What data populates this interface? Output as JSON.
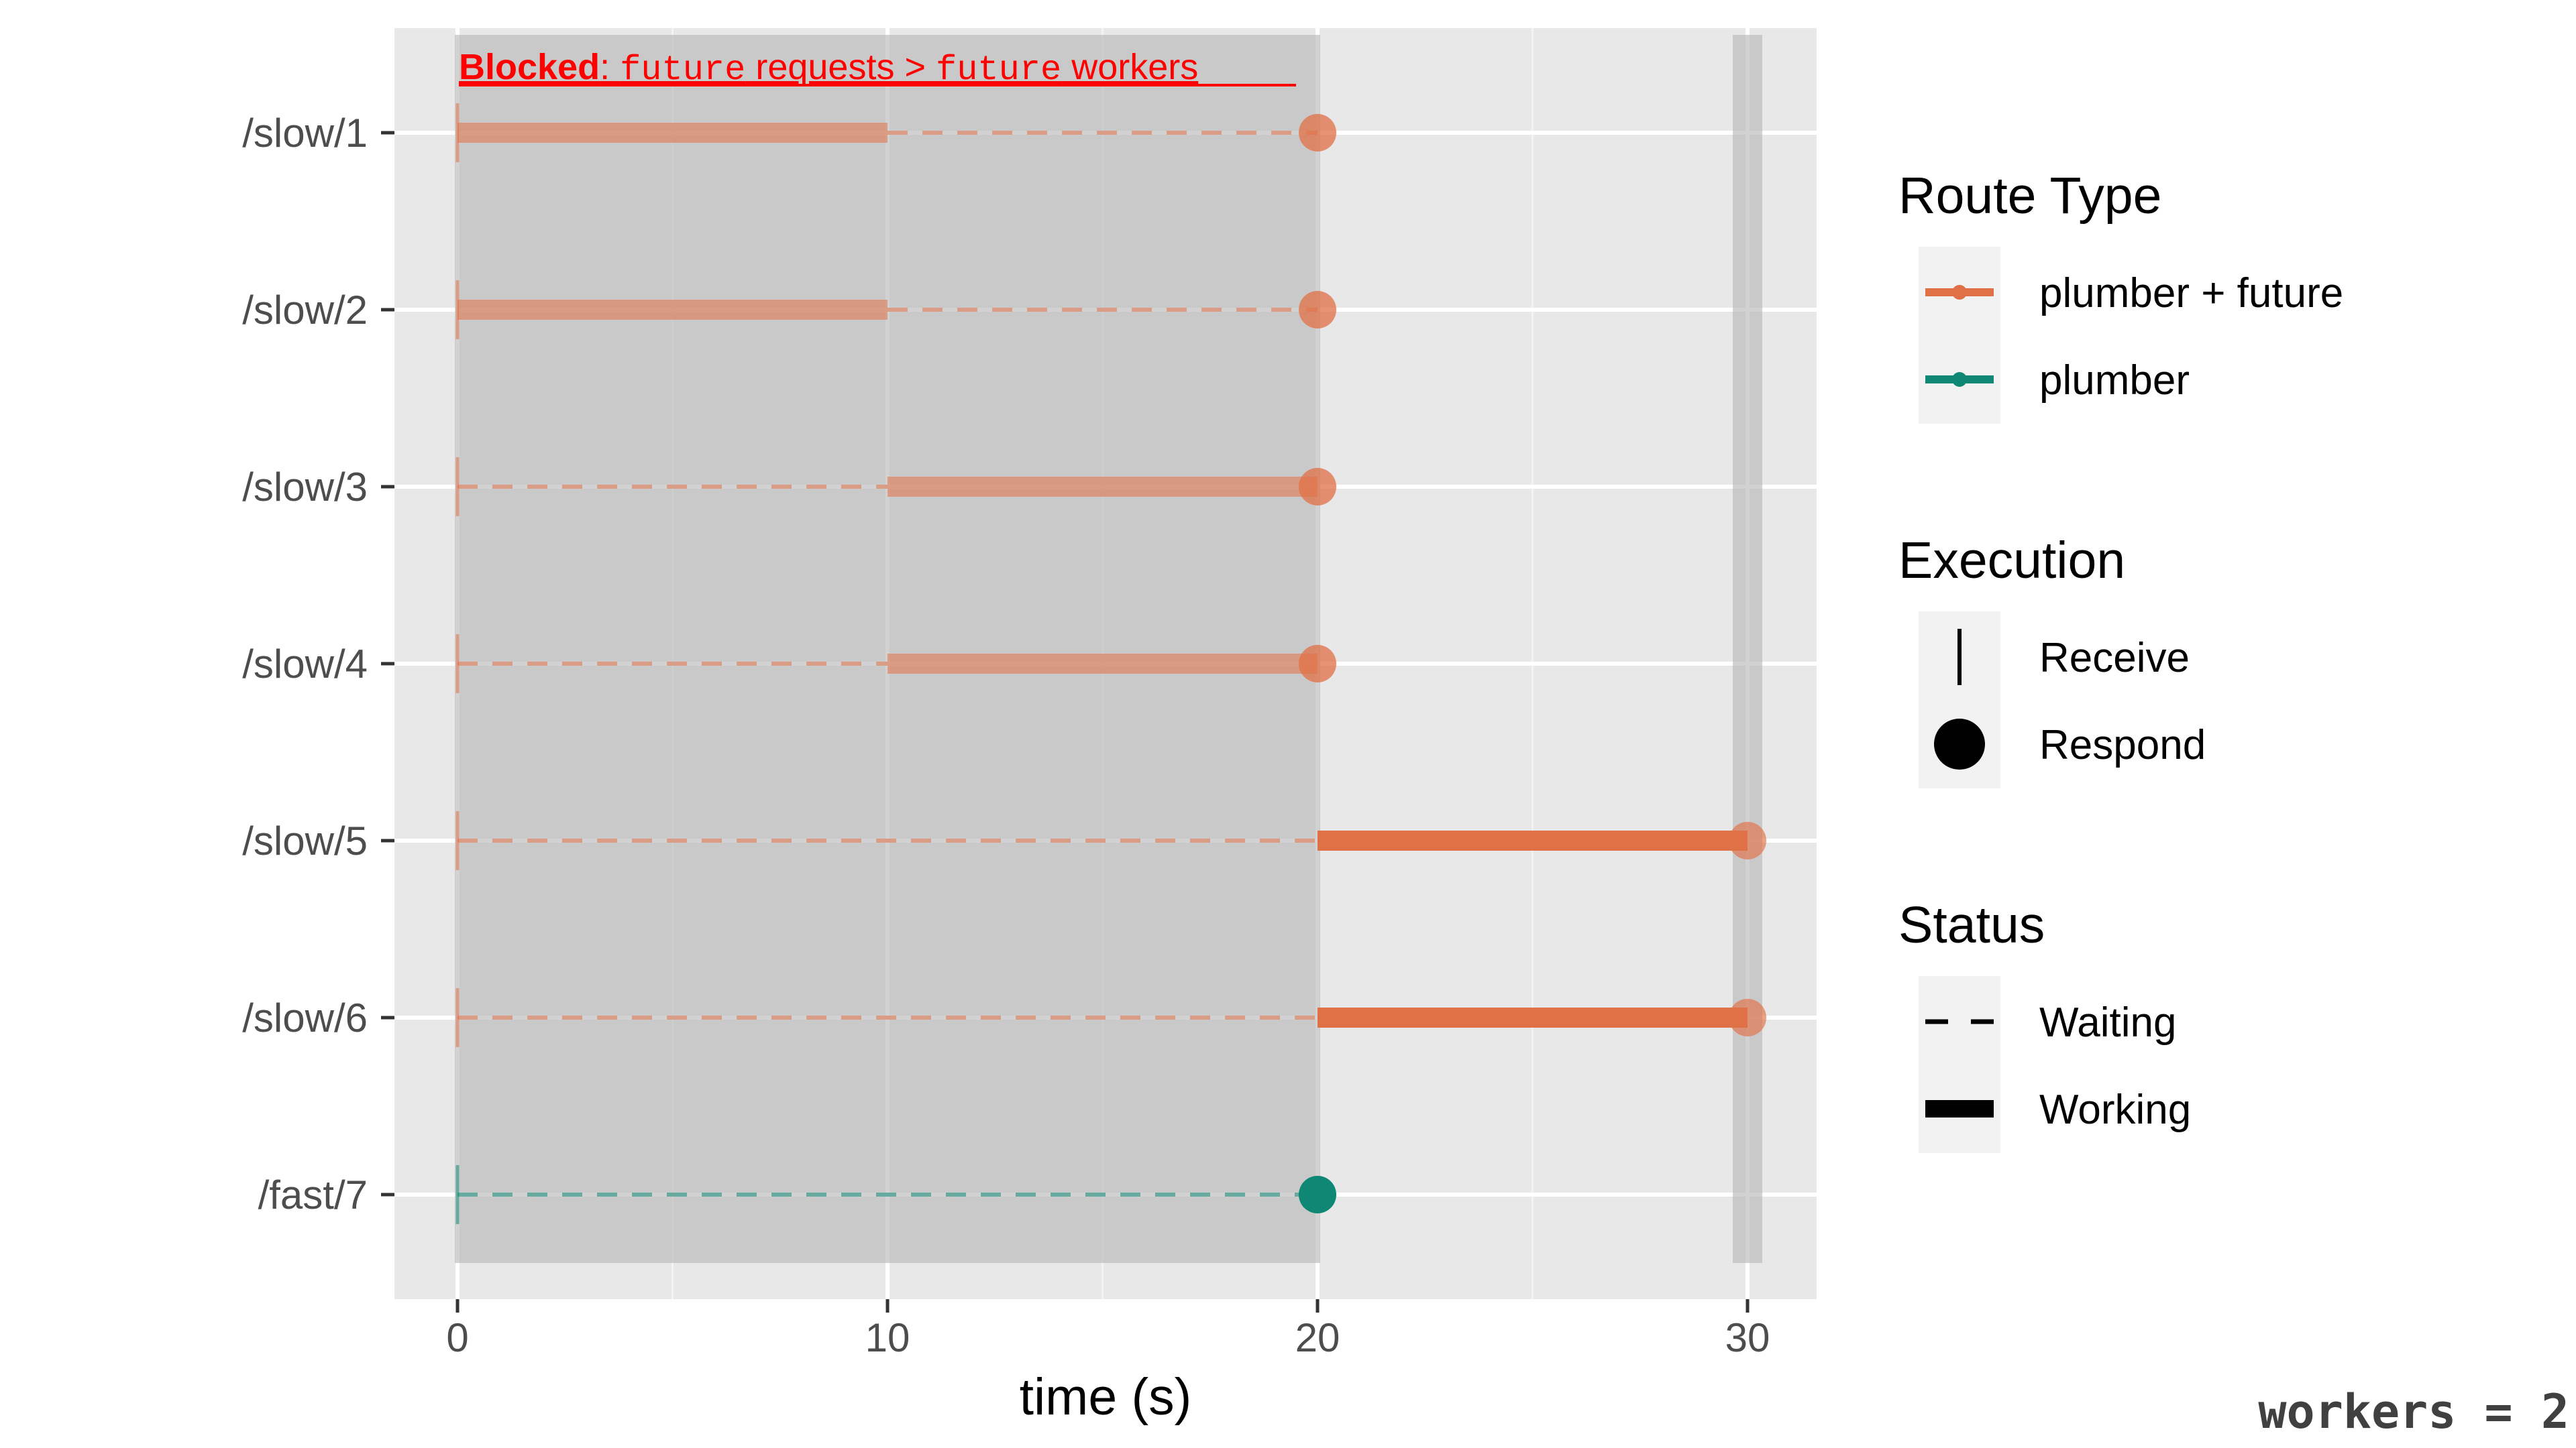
{
  "chart_data": {
    "type": "timeline",
    "xlabel": "time (s)",
    "xlim": [
      -1.5,
      31.5
    ],
    "x_ticks": [
      0,
      10,
      20,
      30
    ],
    "routes": [
      "/slow/1",
      "/slow/2",
      "/slow/3",
      "/slow/4",
      "/slow/5",
      "/slow/6",
      "/fast/7"
    ],
    "segments": [
      {
        "route": "/slow/1",
        "status": "Working",
        "start": 0,
        "end": 10,
        "type": "plumber + future",
        "blocked": true
      },
      {
        "route": "/slow/1",
        "status": "Waiting",
        "start": 10,
        "end": 20,
        "type": "plumber + future",
        "blocked": true
      },
      {
        "route": "/slow/2",
        "status": "Working",
        "start": 0,
        "end": 10,
        "type": "plumber + future",
        "blocked": true
      },
      {
        "route": "/slow/2",
        "status": "Waiting",
        "start": 10,
        "end": 20,
        "type": "plumber + future",
        "blocked": true
      },
      {
        "route": "/slow/3",
        "status": "Waiting",
        "start": 0,
        "end": 10,
        "type": "plumber + future",
        "blocked": true
      },
      {
        "route": "/slow/3",
        "status": "Working",
        "start": 10,
        "end": 20,
        "type": "plumber + future",
        "blocked": true
      },
      {
        "route": "/slow/4",
        "status": "Waiting",
        "start": 0,
        "end": 10,
        "type": "plumber + future",
        "blocked": true
      },
      {
        "route": "/slow/4",
        "status": "Working",
        "start": 10,
        "end": 20,
        "type": "plumber + future",
        "blocked": true
      },
      {
        "route": "/slow/5",
        "status": "Waiting",
        "start": 0,
        "end": 20,
        "type": "plumber + future",
        "blocked": true
      },
      {
        "route": "/slow/5",
        "status": "Working",
        "start": 20,
        "end": 30,
        "type": "plumber + future",
        "blocked": false
      },
      {
        "route": "/slow/6",
        "status": "Waiting",
        "start": 0,
        "end": 20,
        "type": "plumber + future",
        "blocked": true
      },
      {
        "route": "/slow/6",
        "status": "Working",
        "start": 20,
        "end": 30,
        "type": "plumber + future",
        "blocked": false
      },
      {
        "route": "/fast/7",
        "status": "Waiting",
        "start": 0,
        "end": 20,
        "type": "plumber",
        "blocked": true
      }
    ],
    "receive_events": [
      {
        "route": "/slow/1",
        "time": 0
      },
      {
        "route": "/slow/2",
        "time": 0
      },
      {
        "route": "/slow/3",
        "time": 0
      },
      {
        "route": "/slow/4",
        "time": 0
      },
      {
        "route": "/slow/5",
        "time": 0
      },
      {
        "route": "/slow/6",
        "time": 0
      },
      {
        "route": "/fast/7",
        "time": 0
      }
    ],
    "respond_events": [
      {
        "route": "/slow/1",
        "time": 20,
        "type": "plumber + future"
      },
      {
        "route": "/slow/2",
        "time": 20,
        "type": "plumber + future"
      },
      {
        "route": "/slow/3",
        "time": 20,
        "type": "plumber + future"
      },
      {
        "route": "/slow/4",
        "time": 20,
        "type": "plumber + future"
      },
      {
        "route": "/slow/5",
        "time": 30,
        "type": "plumber + future"
      },
      {
        "route": "/slow/6",
        "time": 30,
        "type": "plumber + future"
      },
      {
        "route": "/fast/7",
        "time": 20,
        "type": "plumber"
      }
    ],
    "blocked_region": {
      "start": 0,
      "end": 20
    },
    "end_marker": {
      "time": 30
    },
    "annotation": {
      "bold": "Blocked",
      "parts": [
        ": ",
        "future",
        " requests > ",
        "future",
        " workers"
      ]
    },
    "legend": {
      "placement": "right",
      "route_type": {
        "title": "Route Type",
        "items": [
          {
            "label": "plumber + future",
            "color": "#E07046"
          },
          {
            "label": "plumber",
            "color": "#0E8874"
          }
        ]
      },
      "execution": {
        "title": "Execution",
        "items": [
          {
            "label": "Receive",
            "shape": "vertical-line"
          },
          {
            "label": "Respond",
            "shape": "circle"
          }
        ]
      },
      "status": {
        "title": "Status",
        "items": [
          {
            "label": "Waiting",
            "linetype": "dashed"
          },
          {
            "label": "Working",
            "linetype": "solid"
          }
        ]
      }
    },
    "colors": {
      "plumber_future": "#E07046",
      "plumber": "#0E8874",
      "blocked_overlay": "#b4b4b4",
      "panel_bg": "#e8e8e8",
      "annotation": "#ff0000"
    }
  },
  "footer": {
    "workers_label": "workers = 2"
  }
}
